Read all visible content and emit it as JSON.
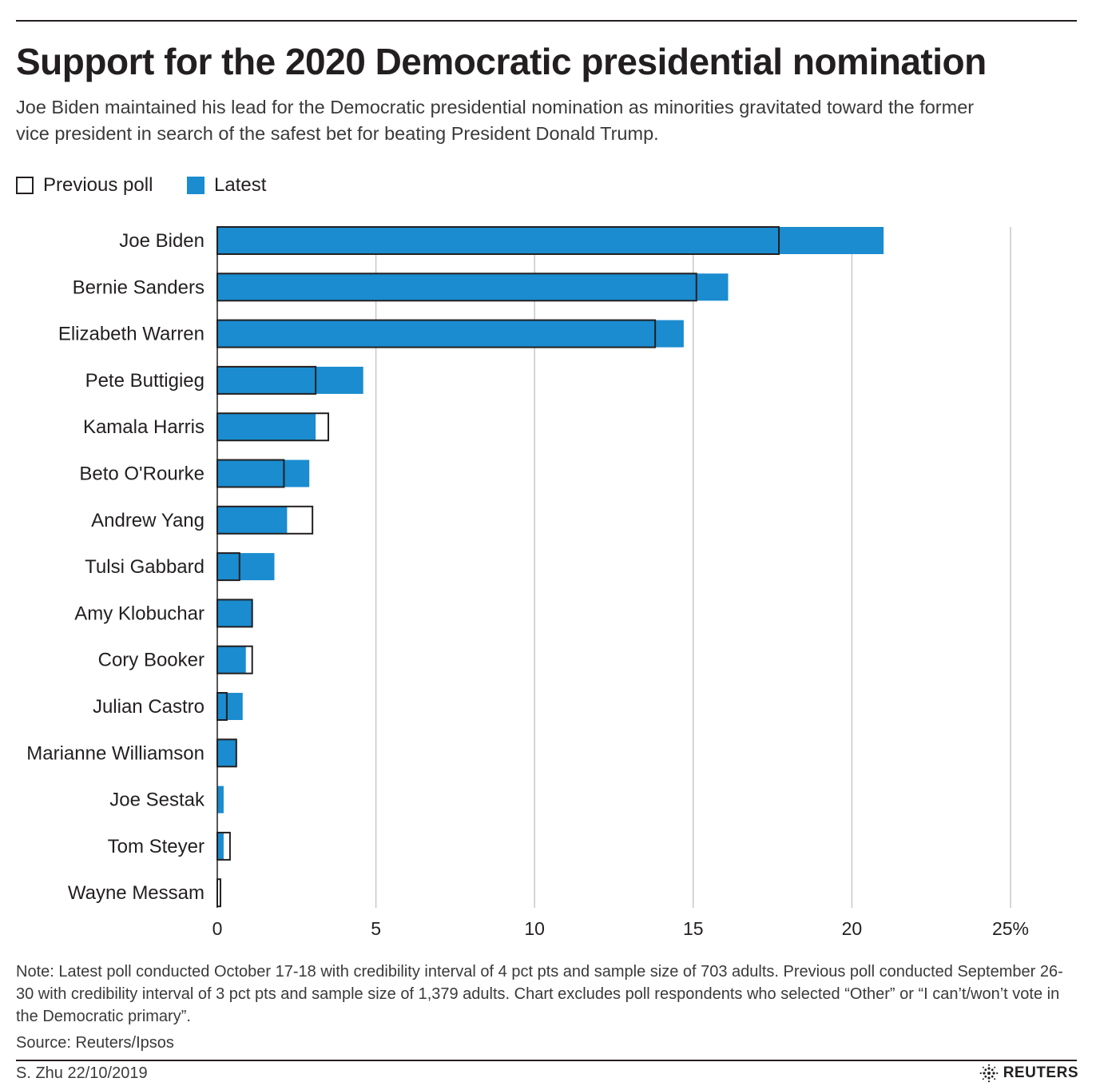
{
  "title": "Support for the 2020 Democratic presidential nomination",
  "subtitle": "Joe Biden maintained his lead for the Democratic presidential nomination as minorities gravitated toward the former vice president in search of the safest bet for beating President Donald Trump.",
  "legend": {
    "previous": "Previous poll",
    "latest": "Latest"
  },
  "colors": {
    "latest": "#1a8ccf",
    "previous_outline": "#231f20",
    "grid": "#c8c8c8",
    "text": "#231f20"
  },
  "chart_data": {
    "type": "bar",
    "orientation": "horizontal",
    "categories": [
      "Joe Biden",
      "Bernie Sanders",
      "Elizabeth Warren",
      "Pete Buttigieg",
      "Kamala Harris",
      "Beto O'Rourke",
      "Andrew Yang",
      "Tulsi Gabbard",
      "Amy Klobuchar",
      "Cory Booker",
      "Julian Castro",
      "Marianne Williamson",
      "Joe Sestak",
      "Tom Steyer",
      "Wayne Messam"
    ],
    "series": [
      {
        "name": "Previous poll",
        "style": "outline",
        "values": [
          17.7,
          15.1,
          13.8,
          3.1,
          3.5,
          2.1,
          3.0,
          0.7,
          1.1,
          1.1,
          0.3,
          0.6,
          0,
          0.4,
          0.1
        ]
      },
      {
        "name": "Latest",
        "style": "fill",
        "values": [
          21.0,
          16.1,
          14.7,
          4.6,
          3.1,
          2.9,
          2.2,
          1.8,
          1.1,
          0.9,
          0.8,
          0.6,
          0.2,
          0.2,
          0
        ]
      }
    ],
    "xlim": [
      0,
      25
    ],
    "xticks": [
      "0",
      "5",
      "10",
      "15",
      "20",
      "25%"
    ],
    "xtick_values": [
      0,
      5,
      10,
      15,
      20,
      25
    ],
    "grid": true,
    "legend_position": "top-left"
  },
  "note": "Note: Latest poll conducted October 17-18 with credibility interval of 4 pct pts and sample size of 703 adults. Previous poll conducted September 26-30 with credibility interval of 3 pct pts and sample size of 1,379 adults. Chart excludes poll respondents who selected “Other” or “I can’t/won’t vote in the Democratic primary”.",
  "source": "Source: Reuters/Ipsos",
  "credit": "S. Zhu 22/10/2019",
  "logo": {
    "text": "REUTERS",
    "icon": "reuters-logo-icon"
  }
}
